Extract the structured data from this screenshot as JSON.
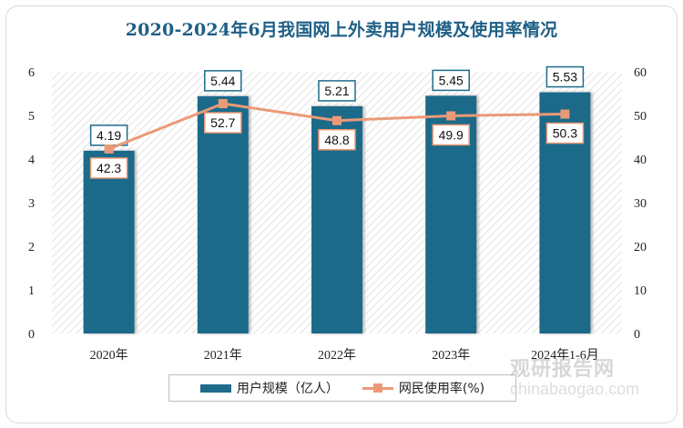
{
  "chart_data": {
    "type": "bar+line",
    "title": "2020-2024年6月我国网上外卖用户规模及使用率情况",
    "categories": [
      "2020年",
      "2021年",
      "2022年",
      "2023年",
      "2024年1-6月"
    ],
    "series": [
      {
        "name": "用户规模（亿人）",
        "type": "bar",
        "axis": "left",
        "values": [
          4.19,
          5.44,
          5.21,
          5.45,
          5.53
        ],
        "color": "#1f6b8a"
      },
      {
        "name": "网民使用率(%)",
        "type": "line",
        "axis": "right",
        "values": [
          42.3,
          52.7,
          48.8,
          49.9,
          50.3
        ],
        "color": "#eb9a77"
      }
    ],
    "y_left": {
      "min": 0,
      "max": 6,
      "ticks": [
        "0",
        "1",
        "2",
        "3",
        "4",
        "5",
        "6"
      ]
    },
    "y_right": {
      "min": 0,
      "max": 60,
      "ticks": [
        "0",
        "10",
        "20",
        "30",
        "40",
        "50",
        "60"
      ]
    },
    "grid": false,
    "legend": "bottom"
  },
  "watermark": {
    "cn": "观研报告网",
    "en": "chinabaogao.com"
  }
}
